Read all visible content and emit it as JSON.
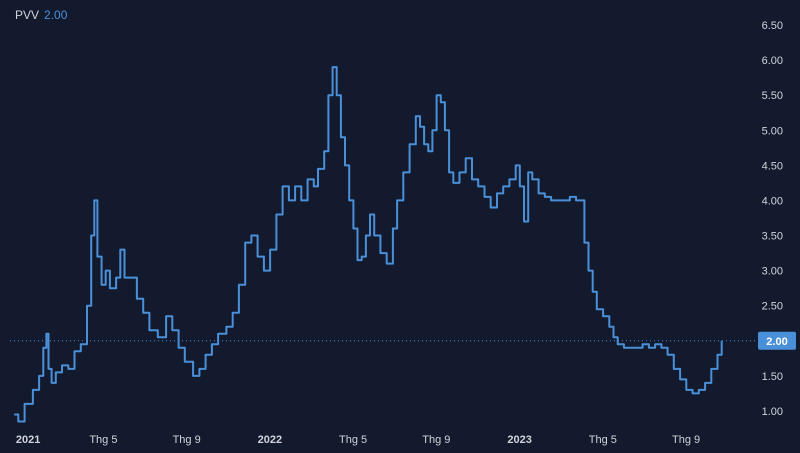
{
  "chart_data": {
    "type": "line",
    "symbol": "PVV",
    "last_value": "2.00",
    "colors": {
      "background": "#131a2d",
      "line": "#4a90d9",
      "text": "#d1d4dc",
      "price_label_bg": "#4a90d9"
    },
    "y_ticks": [
      "1.00",
      "1.50",
      "2.00",
      "2.50",
      "3.00",
      "3.50",
      "4.00",
      "4.50",
      "5.00",
      "5.50",
      "6.00",
      "6.50"
    ],
    "ylim": [
      0.8,
      6.6
    ],
    "x_ticks": [
      {
        "label": "2021",
        "x": 0,
        "bold": true
      },
      {
        "label": "Thg 5",
        "x": 4,
        "bold": false
      },
      {
        "label": "Thg 9",
        "x": 8,
        "bold": false
      },
      {
        "label": "2022",
        "x": 12,
        "bold": true
      },
      {
        "label": "Thg 5",
        "x": 16,
        "bold": false
      },
      {
        "label": "Thg 9",
        "x": 20,
        "bold": false
      },
      {
        "label": "2023",
        "x": 24,
        "bold": true
      },
      {
        "label": "Thg 5",
        "x": 28,
        "bold": false
      },
      {
        "label": "Thg 9",
        "x": 32,
        "bold": false
      }
    ],
    "xlim": [
      -0.2,
      35.6
    ],
    "series": [
      {
        "values": [
          [
            0.0,
            0.95
          ],
          [
            0.2,
            0.85
          ],
          [
            0.5,
            1.1
          ],
          [
            0.9,
            1.3
          ],
          [
            1.2,
            1.5
          ],
          [
            1.4,
            1.9
          ],
          [
            1.55,
            2.1
          ],
          [
            1.65,
            1.6
          ],
          [
            1.8,
            1.4
          ],
          [
            2.0,
            1.55
          ],
          [
            2.3,
            1.65
          ],
          [
            2.6,
            1.6
          ],
          [
            2.9,
            1.85
          ],
          [
            3.2,
            1.95
          ],
          [
            3.5,
            2.5
          ],
          [
            3.7,
            3.5
          ],
          [
            3.85,
            4.0
          ],
          [
            4.0,
            3.2
          ],
          [
            4.2,
            2.8
          ],
          [
            4.4,
            3.0
          ],
          [
            4.6,
            2.75
          ],
          [
            4.9,
            2.9
          ],
          [
            5.1,
            3.3
          ],
          [
            5.3,
            2.9
          ],
          [
            5.6,
            2.9
          ],
          [
            5.9,
            2.6
          ],
          [
            6.2,
            2.4
          ],
          [
            6.5,
            2.15
          ],
          [
            6.9,
            2.05
          ],
          [
            7.3,
            2.35
          ],
          [
            7.6,
            2.15
          ],
          [
            7.9,
            1.9
          ],
          [
            8.2,
            1.7
          ],
          [
            8.6,
            1.5
          ],
          [
            8.9,
            1.6
          ],
          [
            9.2,
            1.8
          ],
          [
            9.5,
            1.95
          ],
          [
            9.8,
            2.1
          ],
          [
            10.2,
            2.2
          ],
          [
            10.5,
            2.4
          ],
          [
            10.8,
            2.8
          ],
          [
            11.1,
            3.4
          ],
          [
            11.4,
            3.5
          ],
          [
            11.7,
            3.2
          ],
          [
            12.0,
            3.0
          ],
          [
            12.3,
            3.3
          ],
          [
            12.6,
            3.8
          ],
          [
            12.9,
            4.2
          ],
          [
            13.2,
            4.0
          ],
          [
            13.5,
            4.2
          ],
          [
            13.8,
            4.0
          ],
          [
            14.1,
            4.3
          ],
          [
            14.4,
            4.2
          ],
          [
            14.6,
            4.45
          ],
          [
            14.9,
            4.7
          ],
          [
            15.1,
            5.5
          ],
          [
            15.3,
            5.9
          ],
          [
            15.5,
            5.5
          ],
          [
            15.7,
            4.9
          ],
          [
            15.9,
            4.5
          ],
          [
            16.1,
            4.0
          ],
          [
            16.3,
            3.6
          ],
          [
            16.5,
            3.15
          ],
          [
            16.7,
            3.2
          ],
          [
            16.9,
            3.5
          ],
          [
            17.1,
            3.8
          ],
          [
            17.3,
            3.5
          ],
          [
            17.6,
            3.25
          ],
          [
            17.9,
            3.1
          ],
          [
            18.2,
            3.6
          ],
          [
            18.4,
            4.0
          ],
          [
            18.7,
            4.4
          ],
          [
            19.0,
            4.8
          ],
          [
            19.3,
            5.2
          ],
          [
            19.5,
            5.05
          ],
          [
            19.7,
            4.8
          ],
          [
            19.9,
            4.7
          ],
          [
            20.1,
            5.0
          ],
          [
            20.3,
            5.5
          ],
          [
            20.5,
            5.4
          ],
          [
            20.7,
            5.0
          ],
          [
            20.9,
            4.4
          ],
          [
            21.1,
            4.25
          ],
          [
            21.4,
            4.4
          ],
          [
            21.7,
            4.6
          ],
          [
            22.0,
            4.3
          ],
          [
            22.3,
            4.2
          ],
          [
            22.6,
            4.05
          ],
          [
            22.9,
            3.9
          ],
          [
            23.2,
            4.1
          ],
          [
            23.5,
            4.2
          ],
          [
            23.8,
            4.3
          ],
          [
            24.1,
            4.5
          ],
          [
            24.3,
            4.2
          ],
          [
            24.5,
            3.7
          ],
          [
            24.7,
            4.4
          ],
          [
            24.9,
            4.3
          ],
          [
            25.2,
            4.1
          ],
          [
            25.5,
            4.05
          ],
          [
            25.8,
            4.0
          ],
          [
            26.1,
            4.0
          ],
          [
            26.4,
            4.0
          ],
          [
            26.7,
            4.05
          ],
          [
            27.0,
            4.0
          ],
          [
            27.2,
            4.0
          ],
          [
            27.4,
            3.4
          ],
          [
            27.6,
            3.0
          ],
          [
            27.8,
            2.7
          ],
          [
            28.0,
            2.45
          ],
          [
            28.3,
            2.35
          ],
          [
            28.6,
            2.2
          ],
          [
            28.8,
            2.05
          ],
          [
            29.0,
            1.95
          ],
          [
            29.3,
            1.9
          ],
          [
            29.6,
            1.9
          ],
          [
            29.9,
            1.9
          ],
          [
            30.2,
            1.95
          ],
          [
            30.5,
            1.9
          ],
          [
            30.8,
            1.95
          ],
          [
            31.1,
            1.9
          ],
          [
            31.4,
            1.8
          ],
          [
            31.7,
            1.6
          ],
          [
            32.0,
            1.45
          ],
          [
            32.3,
            1.3
          ],
          [
            32.6,
            1.25
          ],
          [
            32.9,
            1.3
          ],
          [
            33.2,
            1.4
          ],
          [
            33.5,
            1.6
          ],
          [
            33.8,
            1.8
          ],
          [
            34.0,
            2.0
          ]
        ]
      }
    ]
  }
}
